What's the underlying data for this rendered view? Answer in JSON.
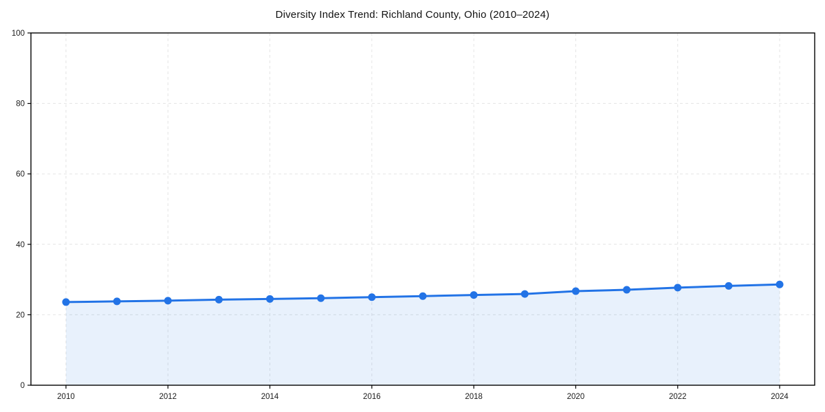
{
  "chart_data": {
    "type": "line",
    "title": "Diversity Index Trend: Richland County, Ohio (2010–2024)",
    "xlabel": "",
    "ylabel": "",
    "x": [
      2010,
      2011,
      2012,
      2013,
      2014,
      2015,
      2016,
      2017,
      2018,
      2019,
      2020,
      2021,
      2022,
      2023,
      2024
    ],
    "series": [
      {
        "name": "Diversity Index",
        "values": [
          23.6,
          23.8,
          24.0,
          24.3,
          24.5,
          24.7,
          25.0,
          25.3,
          25.6,
          25.9,
          26.7,
          27.1,
          27.7,
          28.2,
          28.6
        ]
      }
    ],
    "ylim": [
      0,
      100
    ],
    "xlim": [
      2010,
      2024
    ],
    "yticks": [
      0,
      20,
      40,
      60,
      80,
      100
    ],
    "xticks": [
      2010,
      2012,
      2014,
      2016,
      2018,
      2020,
      2022,
      2024
    ],
    "grid": "dashed",
    "legend_position": "none",
    "area_fill": true,
    "colors": {
      "line": "#2273e6",
      "marker": "#2273e6",
      "area": "rgba(34,115,230,0.10)",
      "grid": "#e4e4e4",
      "spine": "#000000",
      "tick_label": "#1a1a1a",
      "background": "#ffffff"
    }
  }
}
